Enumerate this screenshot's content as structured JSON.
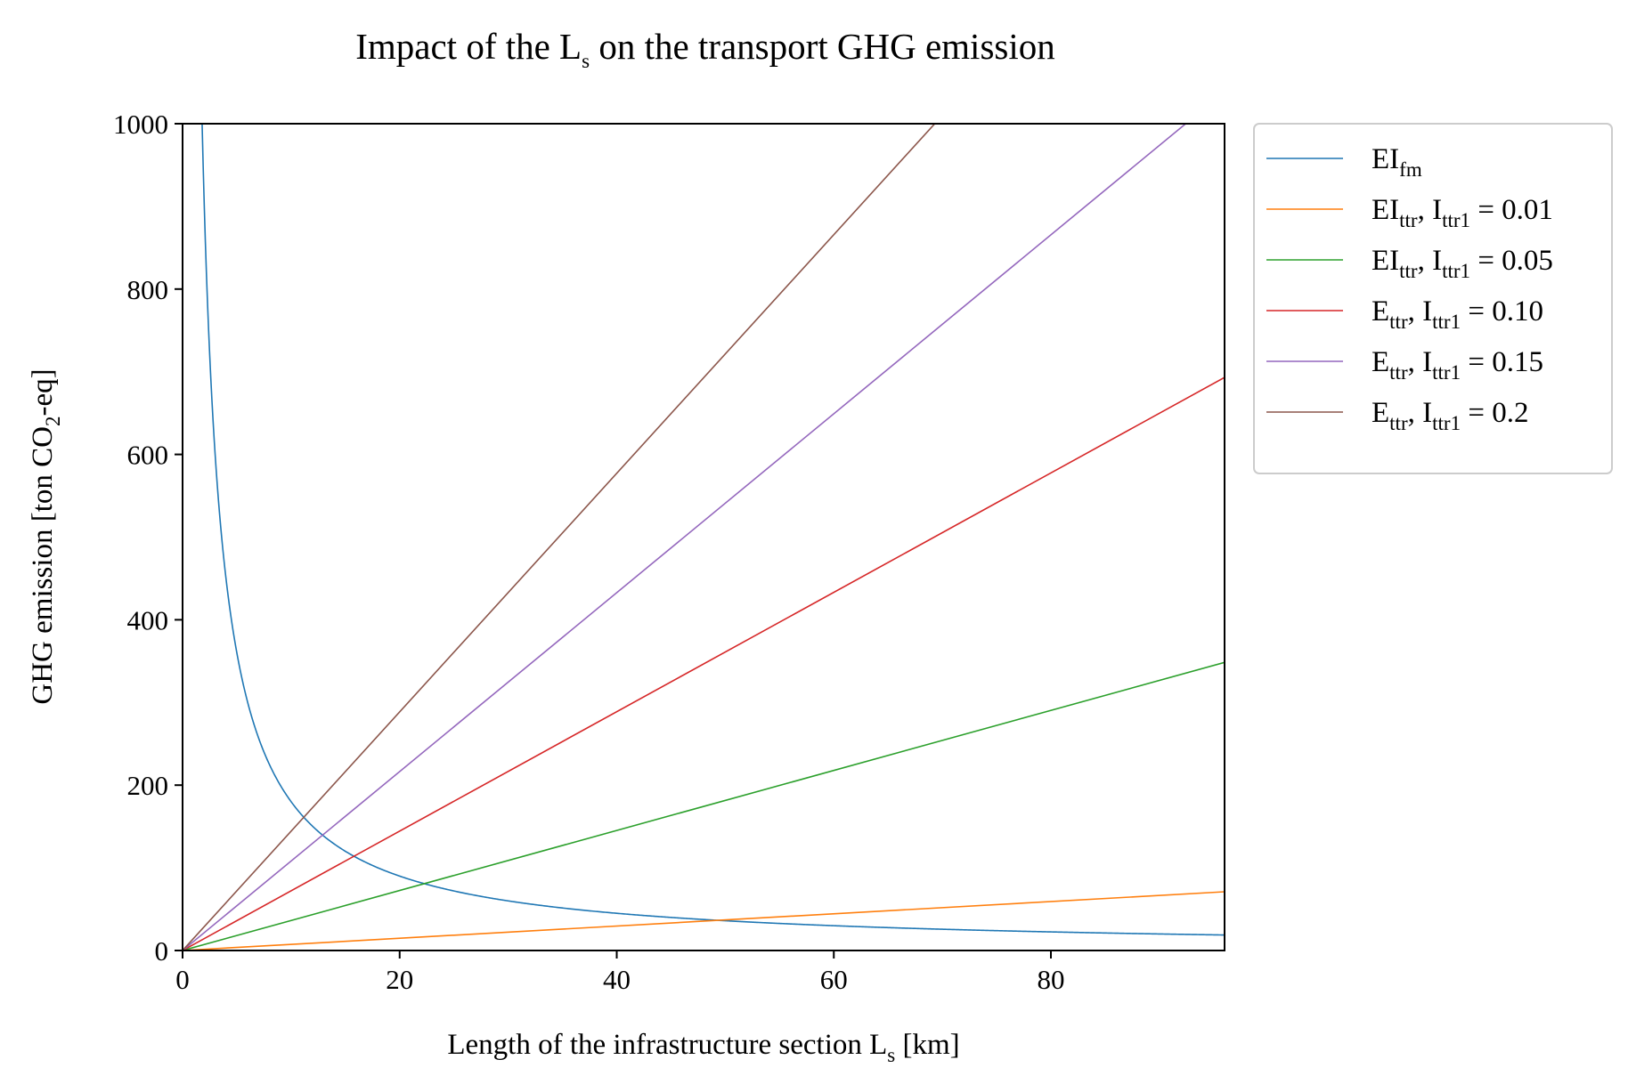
{
  "chart_data": {
    "type": "line",
    "title": "Impact of the L",
    "title_sub": "s",
    "title_rest": " on the transport GHG emission",
    "xlabel": "Length of the infrastructure section L",
    "xlabel_sub": "s",
    "xlabel_rest": " [km]",
    "ylabel": "GHG emission [ton CO",
    "ylabel_sub": "2",
    "ylabel_rest": "-eq]",
    "xlim": [
      0,
      96
    ],
    "ylim": [
      0,
      1000
    ],
    "xticks": [
      0,
      20,
      40,
      60,
      80
    ],
    "yticks": [
      0,
      200,
      400,
      600,
      800,
      1000
    ],
    "grid": false,
    "legend_position": "outside-top-right",
    "series": [
      {
        "label_main": "EI",
        "label_sub": "fm",
        "label_rest": "",
        "color": "#1f77b4",
        "kind": "inverse",
        "coef": 1800,
        "x_start": 1.8
      },
      {
        "label_main": "EI",
        "label_sub": "ttr",
        "label_rest": ", I",
        "label_sub2": "ttr1",
        "label_end": " = 0.01",
        "color": "#ff7f0e",
        "kind": "linear",
        "slope": 0.74
      },
      {
        "label_main": "EI",
        "label_sub": "ttr",
        "label_rest": ", I",
        "label_sub2": "ttr1",
        "label_end": " = 0.05",
        "color": "#2ca02c",
        "kind": "linear",
        "slope": 3.63
      },
      {
        "label_main": "E",
        "label_sub": "ttr",
        "label_rest": ", I",
        "label_sub2": "ttr1",
        "label_end": " = 0.10",
        "color": "#d62728",
        "kind": "linear",
        "slope": 7.22
      },
      {
        "label_main": "E",
        "label_sub": "ttr",
        "label_rest": ", I",
        "label_sub2": "ttr1",
        "label_end": " = 0.15",
        "color": "#9467bd",
        "kind": "linear",
        "slope": 10.82
      },
      {
        "label_main": "E",
        "label_sub": "ttr",
        "label_rest": ", I",
        "label_sub2": "ttr1",
        "label_end": " = 0.2",
        "color": "#8c564b",
        "kind": "linear",
        "slope": 14.43
      }
    ]
  }
}
